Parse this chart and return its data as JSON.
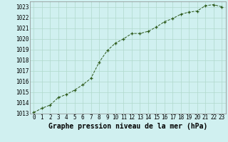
{
  "x": [
    0,
    1,
    2,
    3,
    4,
    5,
    6,
    7,
    8,
    9,
    10,
    11,
    12,
    13,
    14,
    15,
    16,
    17,
    18,
    19,
    20,
    21,
    22,
    23
  ],
  "y": [
    1013.1,
    1013.5,
    1013.8,
    1014.5,
    1014.8,
    1015.2,
    1015.7,
    1016.3,
    1017.8,
    1018.9,
    1019.6,
    1020.0,
    1020.5,
    1020.5,
    1020.7,
    1021.1,
    1021.6,
    1021.9,
    1022.3,
    1022.5,
    1022.6,
    1023.1,
    1023.2,
    1023.0
  ],
  "line_color": "#2d5a1b",
  "marker_color": "#2d5a1b",
  "bg_color": "#d0f0f0",
  "grid_color": "#b0d8cc",
  "xlabel": "Graphe pression niveau de la mer (hPa)",
  "xlabel_fontsize": 7,
  "tick_fontsize": 5.5,
  "ylim": [
    1013,
    1023.5
  ],
  "yticks": [
    1013,
    1014,
    1015,
    1016,
    1017,
    1018,
    1019,
    1020,
    1021,
    1022,
    1023
  ],
  "xlim": [
    -0.5,
    23.5
  ],
  "xticks": [
    0,
    1,
    2,
    3,
    4,
    5,
    6,
    7,
    8,
    9,
    10,
    11,
    12,
    13,
    14,
    15,
    16,
    17,
    18,
    19,
    20,
    21,
    22,
    23
  ]
}
